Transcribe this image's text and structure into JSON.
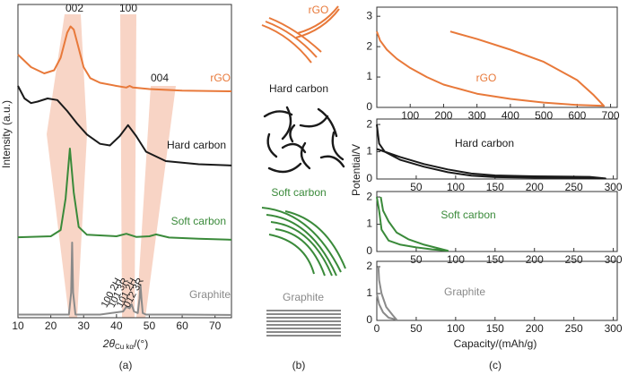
{
  "chart_data": [
    {
      "type": "line",
      "y_label": "Intensity (a.u.)",
      "x_label": "2θ",
      "x_label_sub": "Cu kα",
      "x_label_unit": "/(°)",
      "caption": "(a)",
      "peak_labels": [
        "002",
        "100",
        "004"
      ],
      "reflection_labels": [
        "100 2H",
        "101 3R",
        "101 2H",
        "012 3R"
      ],
      "xlim": [
        10,
        75
      ],
      "xticks": [
        10,
        20,
        30,
        40,
        50,
        60,
        70
      ],
      "ylim": [
        0,
        100
      ],
      "series": [
        {
          "name": "rGO",
          "color": "#e8793a",
          "x": [
            10,
            14,
            18,
            21,
            23,
            25,
            26,
            27,
            28,
            30,
            32,
            35,
            40,
            43,
            44,
            45,
            50,
            60,
            75
          ],
          "values": [
            84,
            80,
            78,
            79,
            83,
            91,
            93,
            92,
            88,
            80,
            76.5,
            75,
            74,
            73.5,
            74,
            73.5,
            73,
            72.5,
            72.3
          ]
        },
        {
          "name": "Hard carbon",
          "color": "#1a1a1a",
          "x": [
            10,
            12,
            14,
            16,
            19,
            22,
            25,
            28,
            31,
            35,
            38,
            41,
            43.5,
            46,
            49,
            55,
            65,
            75
          ],
          "values": [
            74,
            70,
            68.5,
            69,
            70,
            69.5,
            66,
            62,
            58.5,
            55.5,
            55,
            58,
            61.5,
            58,
            53,
            50,
            49,
            48.6
          ]
        },
        {
          "name": "Soft carbon",
          "color": "#3a8a3a",
          "x": [
            10,
            20,
            23,
            24.5,
            25.8,
            27,
            28.5,
            31,
            40,
            43,
            46,
            50,
            52,
            56,
            65,
            75
          ],
          "values": [
            25.7,
            26,
            28,
            38,
            54,
            40,
            29,
            26.5,
            26,
            26.8,
            25.8,
            26,
            26.6,
            25.6,
            25.2,
            24.9
          ]
        },
        {
          "name": "Graphite",
          "color": "#8a8a8a",
          "x": [
            10,
            25.5,
            26.2,
            26.5,
            26.8,
            27.5,
            35,
            42,
            43,
            44,
            44.6,
            45.3,
            46.5,
            47,
            47.3,
            47.6,
            48,
            49,
            60,
            75
          ],
          "values": [
            1,
            1,
            8,
            24,
            8,
            1,
            1,
            2,
            3.5,
            3,
            4.3,
            2,
            1.5,
            6,
            10.5,
            6,
            1.5,
            1,
            1,
            0.9
          ]
        }
      ]
    },
    {
      "type": "line",
      "xlim": [
        0,
        720
      ],
      "xticks": [
        100,
        200,
        300,
        400,
        500,
        600,
        700
      ],
      "ylim": [
        0,
        3.3
      ],
      "yticks": [
        0,
        1,
        2,
        3
      ],
      "series": [
        {
          "name": "rGO",
          "color": "#e8793a",
          "x": [
            0,
            10,
            30,
            60,
            100,
            150,
            200,
            300,
            400,
            500,
            600,
            680,
            650,
            600,
            500,
            400,
            300,
            220
          ],
          "values": [
            2.5,
            2.2,
            1.9,
            1.6,
            1.3,
            1.0,
            0.75,
            0.45,
            0.28,
            0.16,
            0.08,
            0.05,
            0.4,
            0.9,
            1.5,
            1.9,
            2.25,
            2.5
          ]
        }
      ]
    },
    {
      "type": "line",
      "xlim": [
        0,
        305
      ],
      "xticks": [
        50,
        100,
        150,
        200,
        250,
        300
      ],
      "ylim": [
        0,
        2.2
      ],
      "yticks": [
        0,
        1,
        2
      ],
      "series": [
        {
          "name": "Hard carbon",
          "color": "#1a1a1a",
          "x": [
            0,
            3,
            10,
            30,
            60,
            90,
            120,
            150,
            200,
            250,
            290,
            270,
            200,
            150,
            120,
            90,
            60,
            30,
            10,
            0
          ],
          "values": [
            2.0,
            1.3,
            1.0,
            0.7,
            0.45,
            0.25,
            0.12,
            0.07,
            0.05,
            0.04,
            0.02,
            0.08,
            0.1,
            0.13,
            0.2,
            0.35,
            0.55,
            0.8,
            1.0,
            1.1
          ]
        }
      ]
    },
    {
      "type": "line",
      "xlim": [
        0,
        305
      ],
      "xticks": [
        50,
        100,
        150,
        200,
        250,
        300
      ],
      "ylim": [
        0,
        2.2
      ],
      "yticks": [
        0,
        1,
        2
      ],
      "series": [
        {
          "name": "Soft carbon",
          "color": "#3a8a3a",
          "x": [
            0,
            3,
            6,
            15,
            30,
            50,
            70,
            90,
            60,
            40,
            25,
            15,
            8,
            5
          ],
          "values": [
            2.0,
            1.5,
            0.8,
            0.4,
            0.25,
            0.15,
            0.08,
            0.03,
            0.25,
            0.45,
            0.7,
            1.1,
            1.5,
            2.0
          ]
        }
      ]
    },
    {
      "type": "line",
      "xlim": [
        0,
        305
      ],
      "xticks": [
        0,
        50,
        100,
        150,
        200,
        250,
        300
      ],
      "ylim": [
        0,
        2.2
      ],
      "yticks": [
        0,
        1,
        2
      ],
      "series": [
        {
          "name": "Graphite",
          "color": "#8a8a8a",
          "x": [
            0,
            3,
            8,
            15,
            25,
            20,
            12,
            6,
            3,
            2
          ],
          "values": [
            1.0,
            0.6,
            0.3,
            0.1,
            0.03,
            0.2,
            0.5,
            1.0,
            1.5,
            2.0
          ]
        }
      ]
    }
  ],
  "panel_b": {
    "labels": [
      "rGO",
      "Hard carbon",
      "Soft carbon",
      "Graphite"
    ],
    "caption": "(b)"
  },
  "panel_c": {
    "y_label": "Potential/V",
    "x_label": "Capacity/(mAh/g)",
    "caption": "(c)"
  }
}
